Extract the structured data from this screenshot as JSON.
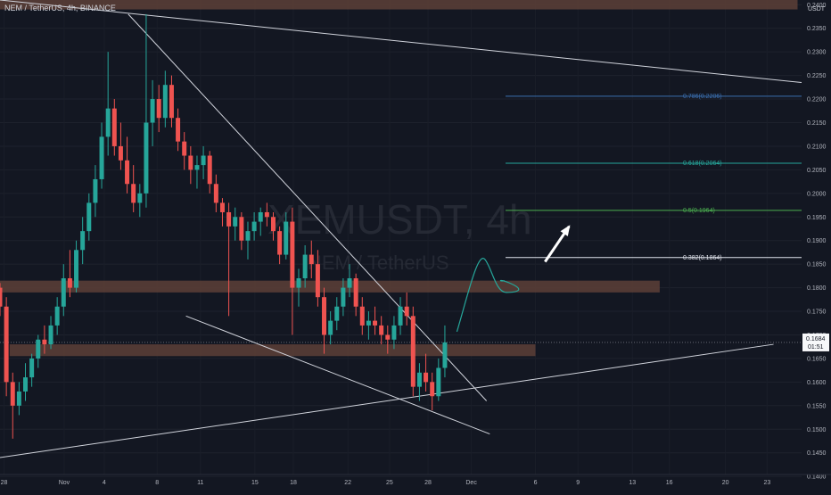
{
  "header": {
    "title": "NEM / TetherUS, 4h, BINANCE",
    "currency": "USDT"
  },
  "watermark": {
    "symbol": "XEMUSDT, 4h",
    "subtitle": "NEM / TetherUS"
  },
  "price_label": {
    "price": "0.1684",
    "countdown": "01:51"
  },
  "colors": {
    "background": "#131722",
    "bullish": "#26a69a",
    "bearish": "#ef5350",
    "zone": "#5d4037",
    "trendline": "#d1d4dc",
    "fib_0786": "#3b6fb0",
    "fib_0618": "#26a69a",
    "fib_05": "#4caf50",
    "fib_0382": "#e0e3eb",
    "projection_curve": "#26a69a",
    "arrow": "#ffffff"
  },
  "chart_data": {
    "type": "candlestick",
    "title": "NEM / TetherUS, 4h, BINANCE",
    "y_unit": "USDT",
    "ylim": [
      0.137,
      0.241
    ],
    "y_ticks": [
      "0.2400",
      "0.2350",
      "0.2300",
      "0.2250",
      "0.2200",
      "0.2150",
      "0.2100",
      "0.2050",
      "0.2000",
      "0.1950",
      "0.1900",
      "0.1850",
      "0.1800",
      "0.1750",
      "0.1700",
      "0.1650",
      "0.1600",
      "0.1550",
      "0.1500",
      "0.1450",
      "0.1400"
    ],
    "x_ticks": [
      "28",
      "Nov",
      "4",
      "8",
      "11",
      "15",
      "18",
      "22",
      "25",
      "28",
      "Dec",
      "6",
      "9",
      "13",
      "16",
      "20",
      "23"
    ],
    "last_price": 0.1684,
    "support_resistance_zones": [
      {
        "low": 0.239,
        "high": 0.241
      },
      {
        "low": 0.179,
        "high": 0.1815
      },
      {
        "low": 0.1655,
        "high": 0.168
      }
    ],
    "fibonacci_levels": [
      {
        "label": "0.786(0.2206)",
        "value": 0.2206
      },
      {
        "label": "0.618(0.2064)",
        "value": 0.2064
      },
      {
        "label": "0.5(0.1964)",
        "value": 0.1964
      },
      {
        "label": "0.382(0.1864)",
        "value": 0.1864
      }
    ],
    "trendlines": [
      {
        "name": "upper",
        "from": [
          0.0,
          0.241
        ],
        "to": [
          1.0,
          0.2235
        ]
      },
      {
        "name": "descending",
        "from": [
          0.16,
          0.238
        ],
        "to": [
          0.607,
          0.156
        ]
      },
      {
        "name": "lower",
        "from": [
          0.232,
          0.174
        ],
        "to": [
          0.611,
          0.149
        ]
      },
      {
        "name": "rising",
        "from": [
          0.0,
          0.144
        ],
        "to": [
          0.965,
          0.168
        ]
      }
    ],
    "candles": [
      [
        0.18,
        0.181,
        0.174,
        0.176
      ],
      [
        0.176,
        0.178,
        0.157,
        0.16
      ],
      [
        0.16,
        0.162,
        0.148,
        0.155
      ],
      [
        0.155,
        0.16,
        0.153,
        0.158
      ],
      [
        0.158,
        0.164,
        0.156,
        0.161
      ],
      [
        0.161,
        0.166,
        0.159,
        0.165
      ],
      [
        0.165,
        0.17,
        0.163,
        0.169
      ],
      [
        0.169,
        0.172,
        0.166,
        0.168
      ],
      [
        0.168,
        0.174,
        0.167,
        0.172
      ],
      [
        0.172,
        0.178,
        0.17,
        0.176
      ],
      [
        0.176,
        0.185,
        0.174,
        0.182
      ],
      [
        0.182,
        0.188,
        0.178,
        0.18
      ],
      [
        0.18,
        0.19,
        0.179,
        0.188
      ],
      [
        0.188,
        0.195,
        0.185,
        0.192
      ],
      [
        0.192,
        0.2,
        0.19,
        0.198
      ],
      [
        0.198,
        0.206,
        0.195,
        0.203
      ],
      [
        0.203,
        0.215,
        0.201,
        0.212
      ],
      [
        0.212,
        0.23,
        0.208,
        0.218
      ],
      [
        0.218,
        0.22,
        0.208,
        0.21
      ],
      [
        0.21,
        0.215,
        0.205,
        0.207
      ],
      [
        0.207,
        0.212,
        0.2,
        0.202
      ],
      [
        0.202,
        0.206,
        0.196,
        0.198
      ],
      [
        0.198,
        0.202,
        0.195,
        0.2
      ],
      [
        0.2,
        0.238,
        0.197,
        0.215
      ],
      [
        0.215,
        0.224,
        0.21,
        0.22
      ],
      [
        0.22,
        0.223,
        0.213,
        0.216
      ],
      [
        0.216,
        0.226,
        0.214,
        0.223
      ],
      [
        0.223,
        0.225,
        0.214,
        0.216
      ],
      [
        0.216,
        0.218,
        0.209,
        0.211
      ],
      [
        0.211,
        0.213,
        0.205,
        0.208
      ],
      [
        0.208,
        0.21,
        0.202,
        0.205
      ],
      [
        0.205,
        0.208,
        0.201,
        0.206
      ],
      [
        0.206,
        0.21,
        0.203,
        0.208
      ],
      [
        0.208,
        0.209,
        0.2,
        0.202
      ],
      [
        0.202,
        0.204,
        0.196,
        0.198
      ],
      [
        0.198,
        0.199,
        0.193,
        0.196
      ],
      [
        0.196,
        0.198,
        0.174,
        0.193
      ],
      [
        0.193,
        0.197,
        0.19,
        0.195
      ],
      [
        0.195,
        0.196,
        0.188,
        0.19
      ],
      [
        0.19,
        0.194,
        0.186,
        0.192
      ],
      [
        0.192,
        0.196,
        0.19,
        0.194
      ],
      [
        0.194,
        0.197,
        0.191,
        0.196
      ],
      [
        0.196,
        0.198,
        0.193,
        0.195
      ],
      [
        0.195,
        0.196,
        0.19,
        0.192
      ],
      [
        0.192,
        0.193,
        0.185,
        0.187
      ],
      [
        0.187,
        0.196,
        0.186,
        0.194
      ],
      [
        0.194,
        0.197,
        0.17,
        0.18
      ],
      [
        0.18,
        0.184,
        0.176,
        0.182
      ],
      [
        0.182,
        0.189,
        0.18,
        0.187
      ],
      [
        0.187,
        0.19,
        0.182,
        0.185
      ],
      [
        0.185,
        0.188,
        0.176,
        0.178
      ],
      [
        0.178,
        0.18,
        0.166,
        0.17
      ],
      [
        0.17,
        0.175,
        0.168,
        0.173
      ],
      [
        0.173,
        0.178,
        0.171,
        0.176
      ],
      [
        0.176,
        0.182,
        0.174,
        0.18
      ],
      [
        0.18,
        0.185,
        0.178,
        0.182
      ],
      [
        0.182,
        0.183,
        0.174,
        0.176
      ],
      [
        0.176,
        0.178,
        0.17,
        0.172
      ],
      [
        0.172,
        0.175,
        0.169,
        0.173
      ],
      [
        0.173,
        0.176,
        0.17,
        0.172
      ],
      [
        0.172,
        0.174,
        0.168,
        0.17
      ],
      [
        0.17,
        0.172,
        0.166,
        0.169
      ],
      [
        0.169,
        0.174,
        0.167,
        0.172
      ],
      [
        0.172,
        0.178,
        0.17,
        0.176
      ],
      [
        0.176,
        0.179,
        0.172,
        0.174
      ],
      [
        0.174,
        0.176,
        0.157,
        0.159
      ],
      [
        0.159,
        0.164,
        0.156,
        0.162
      ],
      [
        0.162,
        0.166,
        0.158,
        0.16
      ],
      [
        0.16,
        0.162,
        0.154,
        0.157
      ],
      [
        0.157,
        0.165,
        0.156,
        0.163
      ],
      [
        0.163,
        0.172,
        0.161,
        0.1684
      ]
    ]
  }
}
